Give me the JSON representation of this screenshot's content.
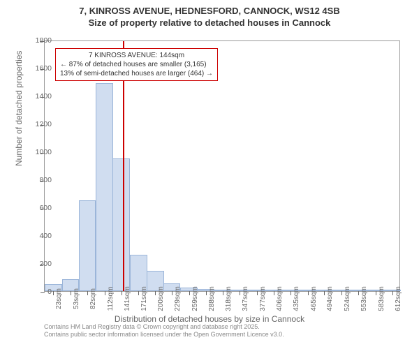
{
  "title_line1": "7, KINROSS AVENUE, HEDNESFORD, CANNOCK, WS12 4SB",
  "title_line2": "Size of property relative to detached houses in Cannock",
  "chart": {
    "type": "histogram",
    "y_axis_label": "Number of detached properties",
    "x_axis_label": "Distribution of detached houses by size in Cannock",
    "ylim": [
      0,
      1800
    ],
    "ytick_step": 200,
    "yticks": [
      0,
      200,
      400,
      600,
      800,
      1000,
      1200,
      1400,
      1600,
      1800
    ],
    "bar_fill": "#d0ddf0",
    "bar_stroke": "#9bb5d9",
    "background_color": "#ffffff",
    "border_color": "#999999",
    "marker_color": "#cc0000",
    "marker_x_value": 144,
    "x_range": [
      8,
      627
    ],
    "bars": [
      {
        "x": 23,
        "value": 50
      },
      {
        "x": 53,
        "value": 85
      },
      {
        "x": 82,
        "value": 650
      },
      {
        "x": 112,
        "value": 1490
      },
      {
        "x": 141,
        "value": 950
      },
      {
        "x": 171,
        "value": 260
      },
      {
        "x": 200,
        "value": 145
      },
      {
        "x": 229,
        "value": 55
      },
      {
        "x": 259,
        "value": 25
      },
      {
        "x": 288,
        "value": 15
      },
      {
        "x": 318,
        "value": 10
      },
      {
        "x": 347,
        "value": 10
      },
      {
        "x": 377,
        "value": 8
      },
      {
        "x": 406,
        "value": 10
      },
      {
        "x": 435,
        "value": 5
      },
      {
        "x": 465,
        "value": 3
      },
      {
        "x": 494,
        "value": 5
      },
      {
        "x": 524,
        "value": 2
      },
      {
        "x": 553,
        "value": 2
      },
      {
        "x": 583,
        "value": 2
      },
      {
        "x": 612,
        "value": 2
      }
    ],
    "xtick_labels": [
      "23sqm",
      "53sqm",
      "82sqm",
      "112sqm",
      "141sqm",
      "171sqm",
      "200sqm",
      "229sqm",
      "259sqm",
      "288sqm",
      "318sqm",
      "347sqm",
      "377sqm",
      "406sqm",
      "435sqm",
      "465sqm",
      "494sqm",
      "524sqm",
      "553sqm",
      "583sqm",
      "612sqm"
    ],
    "annotation": {
      "line1": "7 KINROSS AVENUE: 144sqm",
      "line2": "← 87% of detached houses are smaller (3,165)",
      "line3": "13% of semi-detached houses are larger (464) →"
    },
    "tick_label_color": "#666666"
  },
  "attribution_line1": "Contains HM Land Registry data © Crown copyright and database right 2025.",
  "attribution_line2": "Contains public sector information licensed under the Open Government Licence v3.0."
}
